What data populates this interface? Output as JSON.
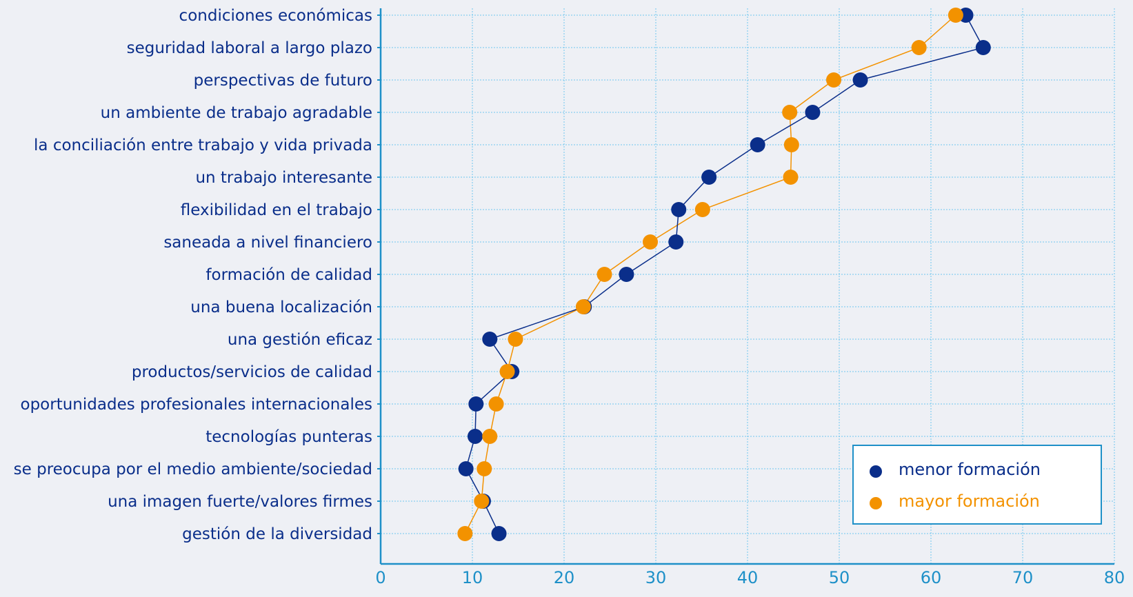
{
  "chart_data": {
    "type": "line",
    "orientation": "horizontal-dot-plot",
    "categories": [
      "condiciones económicas",
      "seguridad laboral a largo plazo",
      "perspectivas de futuro",
      "un ambiente de trabajo agradable",
      "la conciliación entre trabajo y vida privada",
      "un trabajo interesante",
      "flexibilidad en el trabajo",
      "saneada a nivel financiero",
      "formación de calidad",
      "una buena localización",
      "una gestión eficaz",
      "productos/servicios de calidad",
      "oportunidades profesionales internacionales",
      "tecnologías punteras",
      "se preocupa por el medio ambiente/sociedad",
      "una imagen fuerte/valores firmes",
      "gestión de la diversidad"
    ],
    "series": [
      {
        "name": "menor formación",
        "color": "#0a2e8a",
        "values": [
          63.8,
          65.7,
          52.3,
          47.1,
          41.1,
          35.8,
          32.5,
          32.2,
          26.8,
          22.2,
          11.9,
          14.3,
          10.4,
          10.3,
          9.3,
          11.2,
          12.9
        ]
      },
      {
        "name": "mayor formación",
        "color": "#f39200",
        "values": [
          62.7,
          58.7,
          49.4,
          44.6,
          44.8,
          44.7,
          35.1,
          29.4,
          24.4,
          22.1,
          14.7,
          13.8,
          12.6,
          11.9,
          11.3,
          11.0,
          9.2
        ]
      }
    ],
    "x_ticks": [
      "0",
      "10",
      "20",
      "30",
      "40",
      "50",
      "60",
      "70",
      "80"
    ],
    "xlim": [
      0,
      80
    ],
    "grid": true,
    "legend_position": "bottom-right",
    "colors": {
      "axis": "#1e90c8",
      "grid": "#6ec6ee",
      "category_label": "#0a2e8a",
      "tick_label": "#1e90c8",
      "legend_border": "#1e90c8",
      "legend_bg": "#ffffff",
      "background": "#eef0f5"
    }
  }
}
